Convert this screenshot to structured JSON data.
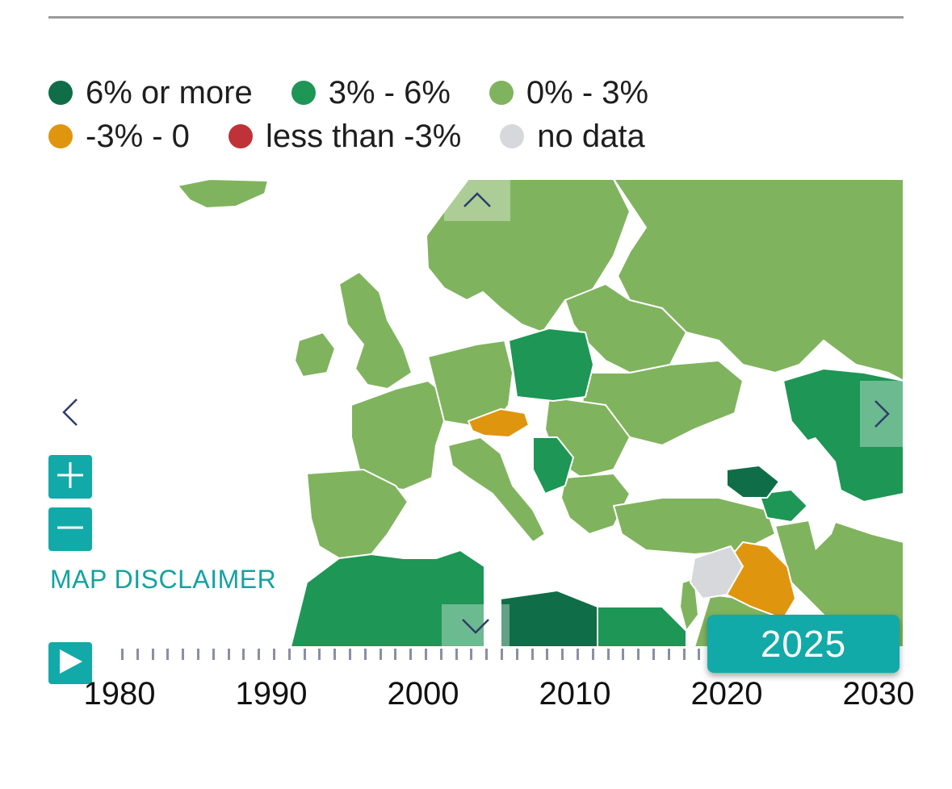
{
  "legend": {
    "items": [
      {
        "label": "6% or more",
        "color": "#0f6e47"
      },
      {
        "label": "3% - 6%",
        "color": "#1e9655"
      },
      {
        "label": "0% - 3%",
        "color": "#80b35e"
      },
      {
        "label": "-3% - 0",
        "color": "#e0950e"
      },
      {
        "label": "less than -3%",
        "color": "#bf3237"
      },
      {
        "label": "no data",
        "color": "#d7d8dc"
      }
    ]
  },
  "map": {
    "region": "Europe, North Africa and Middle East",
    "disclaimer_label": "MAP DISCLAIMER",
    "icons": {
      "pan_up": "chevron-up-icon",
      "pan_down": "chevron-down-icon",
      "pan_left": "chevron-left-icon",
      "pan_right": "chevron-right-icon",
      "zoom_in": "plus-icon",
      "zoom_out": "minus-icon",
      "play": "play-icon"
    }
  },
  "timeline": {
    "labels": [
      "1980",
      "1990",
      "2000",
      "2010",
      "2020",
      "2030"
    ],
    "selected_year": "2025",
    "start_year": 1980,
    "end_year": 2030
  }
}
